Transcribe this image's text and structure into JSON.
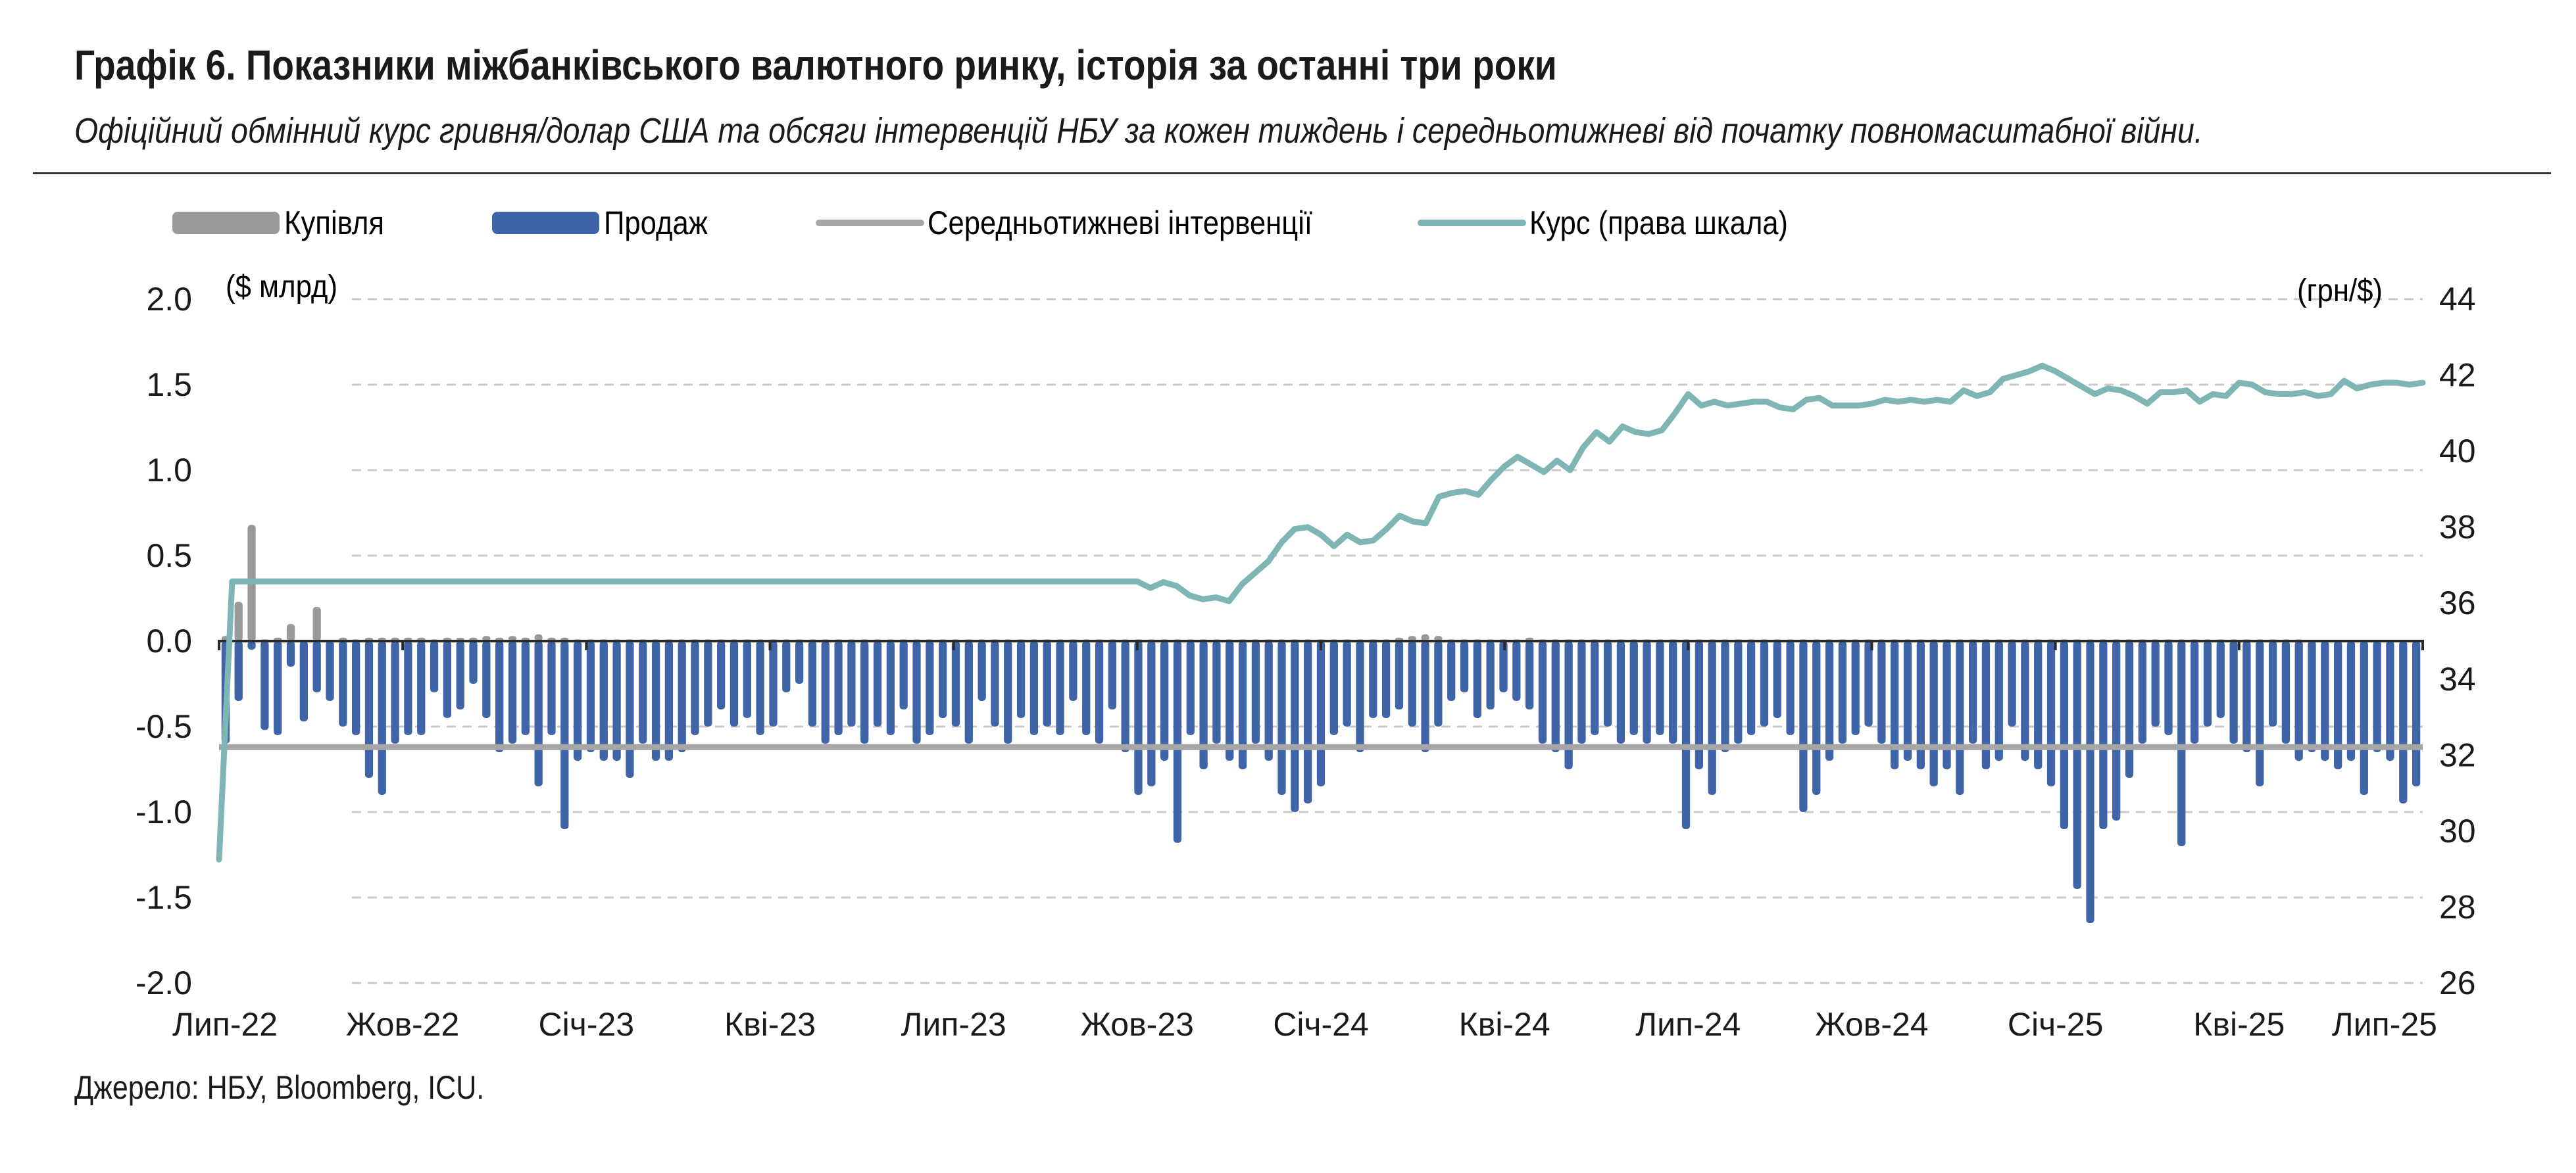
{
  "title": "Графік 6. Показники міжбанківського валютного ринку, історія за останні три роки",
  "subtitle": "Офіційний обмінний курс гривня/долар США та обсяги інтервенцій НБУ за кожен тиждень і середньотижневі від початку повномасштабної війни.",
  "source": "Джерело: НБУ, Bloomberg, ICU.",
  "colors": {
    "buy": "#999999",
    "sell": "#3f64a8",
    "avg": "#a6a6a6",
    "rate": "#7fb5b5",
    "grid": "#c8c8c8",
    "axis": "#2a2a2a"
  },
  "chart_data": {
    "type": "bar",
    "left_axis": {
      "unit_label": "($ млрд)",
      "ylim": [
        -2.0,
        2.0
      ],
      "ticks": [
        "2.0",
        "1.5",
        "1.0",
        "0.5",
        "0.0",
        "-0.5",
        "-1.0",
        "-1.5",
        "-2.0"
      ]
    },
    "right_axis": {
      "unit_label": "(грн/$)",
      "ylim": [
        26,
        44
      ],
      "ticks": [
        "44",
        "42",
        "40",
        "38",
        "36",
        "34",
        "32",
        "30",
        "28",
        "26"
      ]
    },
    "x_tick_labels": [
      "Лип-22",
      "Жов-22",
      "Січ-23",
      "Кві-23",
      "Лип-23",
      "Жов-23",
      "Січ-24",
      "Кві-24",
      "Лип-24",
      "Жов-24",
      "Січ-25",
      "Кві-25",
      "Лип-25"
    ],
    "grid": true,
    "legend_position": "top",
    "series": [
      {
        "name": "Купівля",
        "type": "bar",
        "axis": "left",
        "values": [
          0.03,
          0.23,
          0.68,
          0.01,
          0.02,
          0.1,
          0.0,
          0.2,
          0.0,
          0.02,
          0.01,
          0.02,
          0.02,
          0.02,
          0.02,
          0.02,
          0.01,
          0.02,
          0.02,
          0.02,
          0.03,
          0.02,
          0.03,
          0.02,
          0.04,
          0.02,
          0.02,
          0.01,
          0.01,
          0.01,
          0.01,
          0.01,
          0.01,
          0.01,
          0.01,
          0.01,
          0.01,
          0.01,
          0.01,
          0.01,
          0.01,
          0.01,
          0.01,
          0.01,
          0.01,
          0.01,
          0.01,
          0.01,
          0.01,
          0.01,
          0.01,
          0.01,
          0.01,
          0.01,
          0.01,
          0.01,
          0.01,
          0.01,
          0.01,
          0.01,
          0.01,
          0.01,
          0.01,
          0.01,
          0.01,
          0.01,
          0.01,
          0.01,
          0.01,
          0.01,
          0.01,
          0.01,
          0.01,
          0.01,
          0.01,
          0.01,
          0.01,
          0.01,
          0.01,
          0.01,
          0.01,
          0.01,
          0.01,
          0.01,
          0.01,
          0.01,
          0.01,
          0.01,
          0.01,
          0.01,
          0.02,
          0.03,
          0.04,
          0.03,
          0.01,
          0.01,
          0.01,
          0.01,
          0.01,
          0.01,
          0.02,
          0.01,
          0.01,
          0.01,
          0.01,
          0.01,
          0.01,
          0.01,
          0.01,
          0.01,
          0.01,
          0.01,
          0.01,
          0.01,
          0.01,
          0.01,
          0.01,
          0.01,
          0.01,
          0.01,
          0.01,
          0.01,
          0.01,
          0.01,
          0.01,
          0.01,
          0.01,
          0.01,
          0.01,
          0.01,
          0.01,
          0.01,
          0.01,
          0.01,
          0.01,
          0.01,
          0.01,
          0.01,
          0.01,
          0.01,
          0.01,
          0.01,
          0.01,
          0.01,
          0.01,
          0.01,
          0.01,
          0.01,
          0.01,
          0.01,
          0.01,
          0.01,
          0.01,
          0.01,
          0.01,
          0.01,
          0.01,
          0.01,
          0.01,
          0.01
        ]
      },
      {
        "name": "Продаж",
        "type": "bar",
        "axis": "left",
        "values": [
          -0.6,
          -0.35,
          -0.05,
          -0.52,
          -0.55,
          -0.15,
          -0.47,
          -0.3,
          -0.35,
          -0.5,
          -0.55,
          -0.8,
          -0.9,
          -0.6,
          -0.55,
          -0.55,
          -0.3,
          -0.45,
          -0.4,
          -0.25,
          -0.45,
          -0.65,
          -0.6,
          -0.55,
          -0.85,
          -0.55,
          -1.1,
          -0.7,
          -0.65,
          -0.7,
          -0.7,
          -0.8,
          -0.6,
          -0.7,
          -0.7,
          -0.65,
          -0.55,
          -0.5,
          -0.4,
          -0.5,
          -0.45,
          -0.55,
          -0.5,
          -0.3,
          -0.25,
          -0.5,
          -0.6,
          -0.55,
          -0.5,
          -0.6,
          -0.5,
          -0.55,
          -0.4,
          -0.6,
          -0.55,
          -0.45,
          -0.5,
          -0.6,
          -0.35,
          -0.5,
          -0.6,
          -0.45,
          -0.55,
          -0.5,
          -0.55,
          -0.35,
          -0.55,
          -0.6,
          -0.4,
          -0.65,
          -0.9,
          -0.85,
          -0.7,
          -1.18,
          -0.55,
          -0.75,
          -0.6,
          -0.7,
          -0.75,
          -0.6,
          -0.7,
          -0.9,
          -1.0,
          -0.95,
          -0.85,
          -0.55,
          -0.5,
          -0.65,
          -0.45,
          -0.45,
          -0.4,
          -0.5,
          -0.65,
          -0.5,
          -0.35,
          -0.3,
          -0.45,
          -0.4,
          -0.3,
          -0.35,
          -0.4,
          -0.6,
          -0.65,
          -0.75,
          -0.6,
          -0.55,
          -0.5,
          -0.6,
          -0.55,
          -0.6,
          -0.55,
          -0.6,
          -1.1,
          -0.75,
          -0.9,
          -0.65,
          -0.6,
          -0.55,
          -0.5,
          -0.45,
          -0.55,
          -1.0,
          -0.9,
          -0.7,
          -0.6,
          -0.55,
          -0.5,
          -0.6,
          -0.75,
          -0.7,
          -0.75,
          -0.85,
          -0.75,
          -0.9,
          -0.6,
          -0.75,
          -0.7,
          -0.5,
          -0.7,
          -0.75,
          -0.85,
          -1.1,
          -1.45,
          -1.65,
          -1.1,
          -1.05,
          -0.8,
          -0.6,
          -0.5,
          -0.55,
          -1.2,
          -0.6,
          -0.5,
          -0.45,
          -0.6,
          -0.65,
          -0.85,
          -0.5,
          -0.6,
          -0.7,
          -0.65,
          -0.7,
          -0.75,
          -0.7,
          -0.9,
          -0.65,
          -0.7,
          -0.95,
          -0.85
        ]
      },
      {
        "name": "Середньотижневі інтервенції",
        "type": "line",
        "axis": "left",
        "values": [
          -0.62
        ]
      },
      {
        "name": "Курс (права шкала)",
        "type": "line",
        "axis": "right",
        "values": [
          29.25,
          36.57,
          36.57,
          36.57,
          36.57,
          36.57,
          36.57,
          36.57,
          36.57,
          36.57,
          36.57,
          36.57,
          36.57,
          36.57,
          36.57,
          36.57,
          36.57,
          36.57,
          36.57,
          36.57,
          36.57,
          36.57,
          36.57,
          36.57,
          36.57,
          36.57,
          36.57,
          36.57,
          36.57,
          36.57,
          36.57,
          36.57,
          36.57,
          36.57,
          36.57,
          36.57,
          36.57,
          36.57,
          36.57,
          36.57,
          36.57,
          36.57,
          36.57,
          36.57,
          36.57,
          36.57,
          36.57,
          36.57,
          36.57,
          36.57,
          36.57,
          36.57,
          36.57,
          36.57,
          36.57,
          36.57,
          36.57,
          36.57,
          36.57,
          36.57,
          36.57,
          36.57,
          36.57,
          36.57,
          36.57,
          36.57,
          36.57,
          36.57,
          36.57,
          36.57,
          36.57,
          36.4,
          36.55,
          36.45,
          36.2,
          36.1,
          36.15,
          36.05,
          36.5,
          36.8,
          37.1,
          37.6,
          37.95,
          38.0,
          37.8,
          37.5,
          37.8,
          37.6,
          37.65,
          37.95,
          38.3,
          38.15,
          38.1,
          38.8,
          38.9,
          38.95,
          38.85,
          39.25,
          39.6,
          39.85,
          39.65,
          39.45,
          39.75,
          39.5,
          40.1,
          40.5,
          40.25,
          40.65,
          40.5,
          40.45,
          40.55,
          41.0,
          41.5,
          41.2,
          41.3,
          41.2,
          41.25,
          41.3,
          41.3,
          41.15,
          41.1,
          41.35,
          41.4,
          41.2,
          41.2,
          41.2,
          41.25,
          41.35,
          41.3,
          41.35,
          41.3,
          41.35,
          41.3,
          41.6,
          41.45,
          41.55,
          41.9,
          42.0,
          42.1,
          42.25,
          42.1,
          41.9,
          41.7,
          41.5,
          41.65,
          41.6,
          41.45,
          41.25,
          41.55,
          41.55,
          41.6,
          41.3,
          41.5,
          41.45,
          41.8,
          41.75,
          41.55,
          41.5,
          41.5,
          41.55,
          41.45,
          41.5,
          41.85,
          41.65,
          41.75,
          41.8,
          41.8,
          41.75,
          41.8
        ]
      }
    ]
  }
}
